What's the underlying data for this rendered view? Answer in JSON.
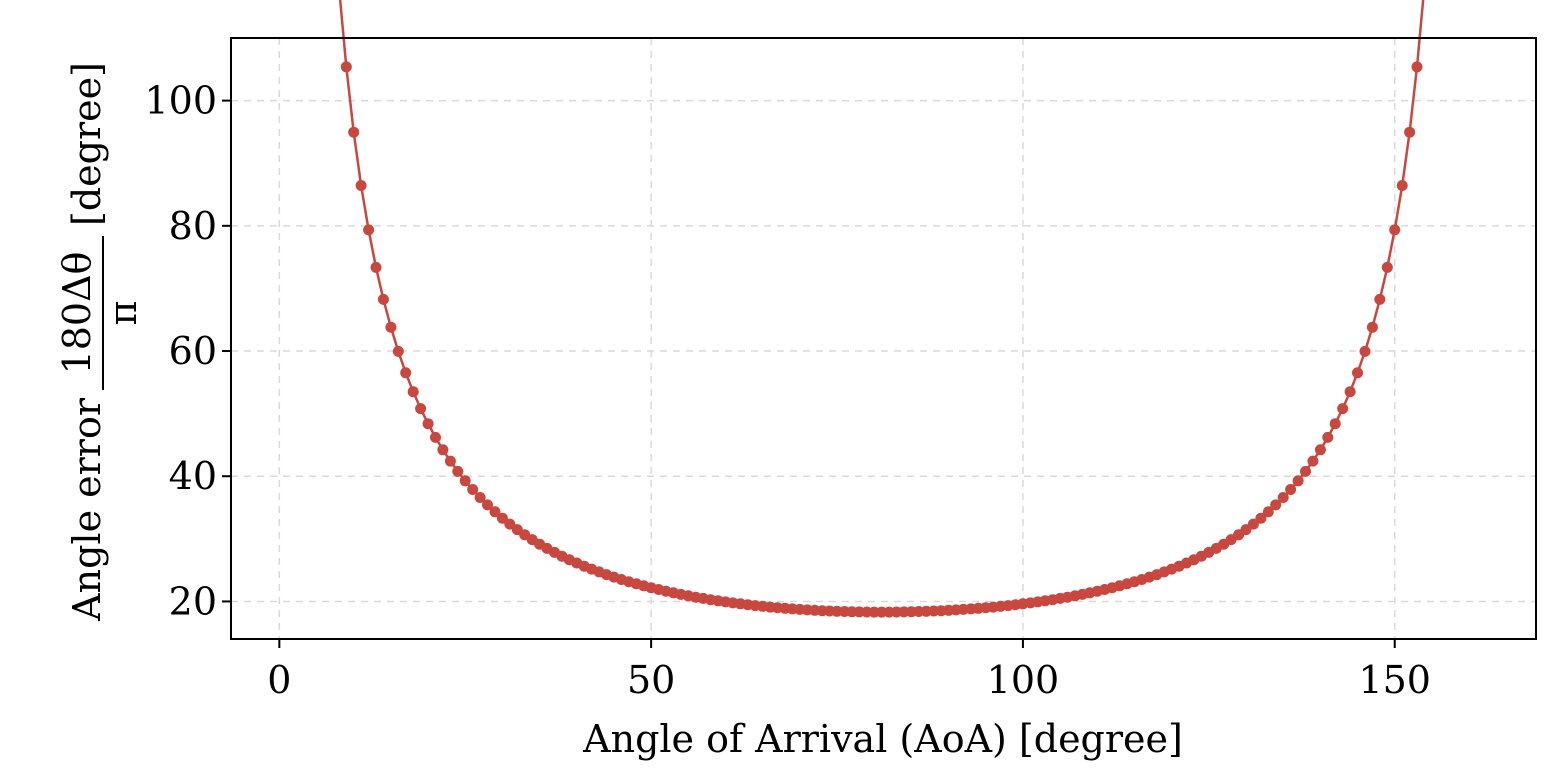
{
  "chart_data": {
    "type": "line",
    "title": "",
    "xlabel": "Angle of Arrival (AoA) [degree]",
    "ylabel": {
      "prefix": "Angle error",
      "numerator": "180Δθ",
      "denominator": "π",
      "unit": "[degree]"
    },
    "xlim": [
      -6.5,
      169
    ],
    "ylim": [
      14,
      110
    ],
    "xticks": [
      0,
      50,
      100,
      150
    ],
    "yticks": [
      20,
      40,
      60,
      80,
      100
    ],
    "grid": true,
    "legend": "none",
    "series": [
      {
        "color": "#c8473e",
        "marker": "circle",
        "model": "cosec",
        "params": {
          "amplitude": 18.3,
          "center": 81,
          "x_start": 1,
          "x_end": 161,
          "step": 1
        }
      }
    ]
  }
}
